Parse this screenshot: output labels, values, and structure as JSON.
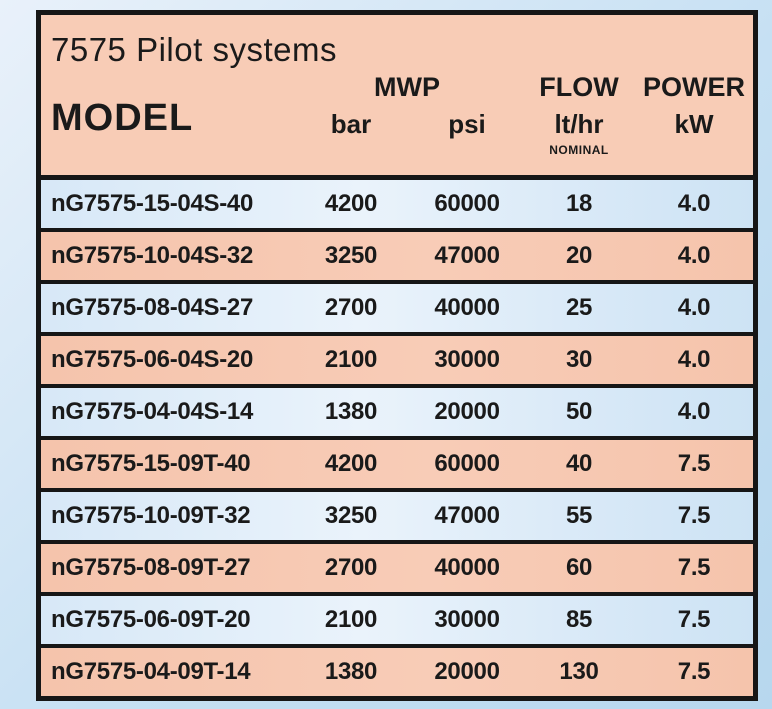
{
  "title": "7575 Pilot systems",
  "header": {
    "model": "MODEL",
    "mwp": "MWP",
    "bar": "bar",
    "psi": "psi",
    "flow": "FLOW",
    "flow_unit": "lt/hr",
    "flow_note": "NOMINAL",
    "power": "POWER",
    "power_unit": "kW"
  },
  "rows": [
    {
      "model": "nG7575-15-04S-40",
      "bar": "4200",
      "psi": "60000",
      "flow": "18",
      "power": "4.0",
      "variant": "blue"
    },
    {
      "model": "nG7575-10-04S-32",
      "bar": "3250",
      "psi": "47000",
      "flow": "20",
      "power": "4.0",
      "variant": "salmon"
    },
    {
      "model": "nG7575-08-04S-27",
      "bar": "2700",
      "psi": "40000",
      "flow": "25",
      "power": "4.0",
      "variant": "blue"
    },
    {
      "model": "nG7575-06-04S-20",
      "bar": "2100",
      "psi": "30000",
      "flow": "30",
      "power": "4.0",
      "variant": "salmon"
    },
    {
      "model": "nG7575-04-04S-14",
      "bar": "1380",
      "psi": "20000",
      "flow": "50",
      "power": "4.0",
      "variant": "blue"
    },
    {
      "model": "nG7575-15-09T-40",
      "bar": "4200",
      "psi": "60000",
      "flow": "40",
      "power": "7.5",
      "variant": "salmon"
    },
    {
      "model": "nG7575-10-09T-32",
      "bar": "3250",
      "psi": "47000",
      "flow": "55",
      "power": "7.5",
      "variant": "blue"
    },
    {
      "model": "nG7575-08-09T-27",
      "bar": "2700",
      "psi": "40000",
      "flow": "60",
      "power": "7.5",
      "variant": "salmon"
    },
    {
      "model": "nG7575-06-09T-20",
      "bar": "2100",
      "psi": "30000",
      "flow": "85",
      "power": "7.5",
      "variant": "blue"
    },
    {
      "model": "nG7575-04-09T-14",
      "bar": "1380",
      "psi": "20000",
      "flow": "130",
      "power": "7.5",
      "variant": "salmon"
    }
  ],
  "colors": {
    "page_bg_1": "#e9f1fa",
    "page_bg_2": "#c6e0f3",
    "page_bg_3": "#b7d7ee",
    "panel_salmon": "#f8ccb6",
    "row_blue_1": "#d7e8f7",
    "row_blue_2": "#eaf3fb",
    "row_blue_3": "#cde3f4",
    "row_salmon_1": "#f5c4ac",
    "row_salmon_2": "#f8ccb7",
    "border_black": "#161616",
    "text": "#1a1a1a"
  }
}
